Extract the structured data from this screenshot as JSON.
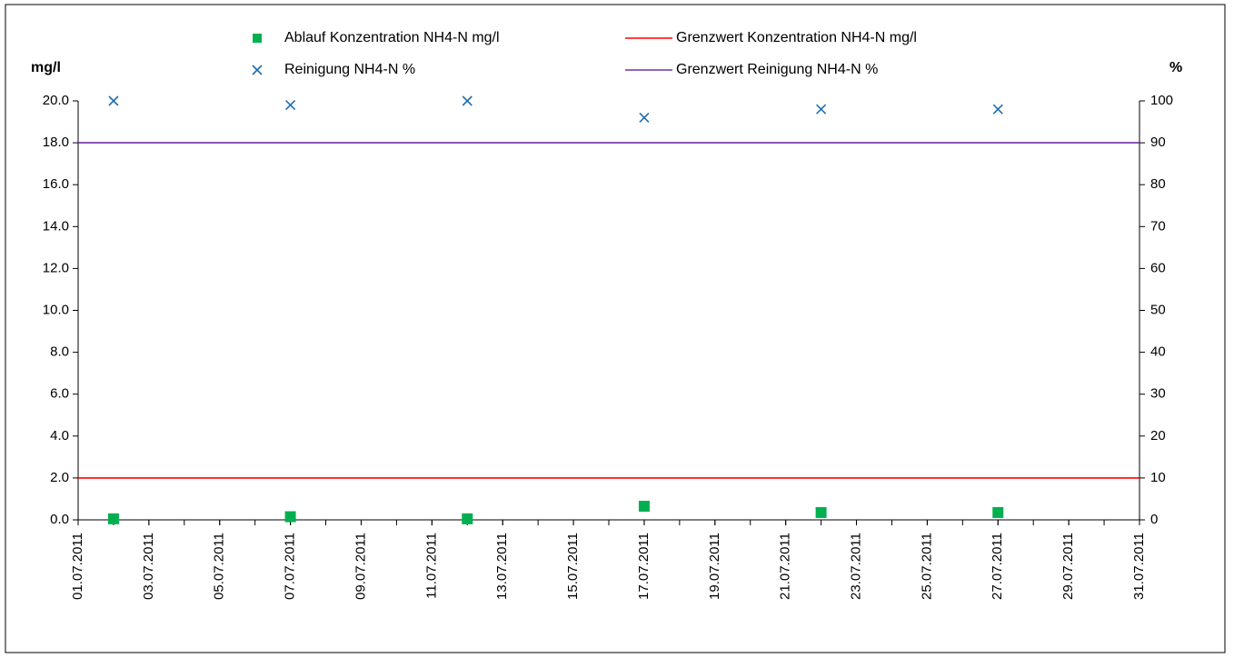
{
  "chart_data": {
    "type": "scatter",
    "y_label": "mg/l",
    "y2_label": "%",
    "xlim": [
      "01.07.2011",
      "31.07.2011"
    ],
    "xticks": [
      "01.07.2011",
      "03.07.2011",
      "05.07.2011",
      "07.07.2011",
      "09.07.2011",
      "11.07.2011",
      "13.07.2011",
      "15.07.2011",
      "17.07.2011",
      "19.07.2011",
      "21.07.2011",
      "23.07.2011",
      "25.07.2011",
      "27.07.2011",
      "29.07.2011",
      "31.07.2011"
    ],
    "ylim": [
      0,
      20
    ],
    "yticks": [
      {
        "value": 0,
        "label": "0.0"
      },
      {
        "value": 2,
        "label": "2.0"
      },
      {
        "value": 4,
        "label": "4.0"
      },
      {
        "value": 6,
        "label": "6.0"
      },
      {
        "value": 8,
        "label": "8.0"
      },
      {
        "value": 10,
        "label": "10.0"
      },
      {
        "value": 12,
        "label": "12.0"
      },
      {
        "value": 14,
        "label": "14.0"
      },
      {
        "value": 16,
        "label": "16.0"
      },
      {
        "value": 18,
        "label": "18.0"
      },
      {
        "value": 20,
        "label": "20.0"
      }
    ],
    "y2lim": [
      0,
      100
    ],
    "y2ticks": [
      0,
      10,
      20,
      30,
      40,
      50,
      60,
      70,
      80,
      90,
      100
    ],
    "series": [
      {
        "name": "Ablauf Konzentration NH4-N mg/l",
        "mode": "square",
        "color": "#00b050",
        "x": [
          "02.07.2011",
          "07.07.2011",
          "12.07.2011",
          "17.07.2011",
          "22.07.2011",
          "27.07.2011"
        ],
        "values": [
          0.05,
          0.15,
          0.05,
          0.65,
          0.35,
          0.35
        ]
      },
      {
        "name": "Grenzwert Konzentration NH4-N mg/l",
        "mode": "line",
        "color": "#ff0000",
        "x": [
          "01.07.2011",
          "31.07.2011"
        ],
        "values": [
          2,
          2
        ]
      },
      {
        "name": "Reinigung NH4-N %",
        "mode": "cross",
        "color": "#1f6eb0",
        "axis": "y2",
        "x": [
          "02.07.2011",
          "07.07.2011",
          "12.07.2011",
          "17.07.2011",
          "22.07.2011",
          "27.07.2011"
        ],
        "values": [
          100,
          99,
          100,
          96,
          98,
          98
        ]
      },
      {
        "name": "Grenzwert Reinigung NH4-N %",
        "mode": "line",
        "color": "#7030a0",
        "axis": "y2",
        "x": [
          "01.07.2011",
          "31.07.2011"
        ],
        "values": [
          90,
          90
        ]
      }
    ]
  }
}
